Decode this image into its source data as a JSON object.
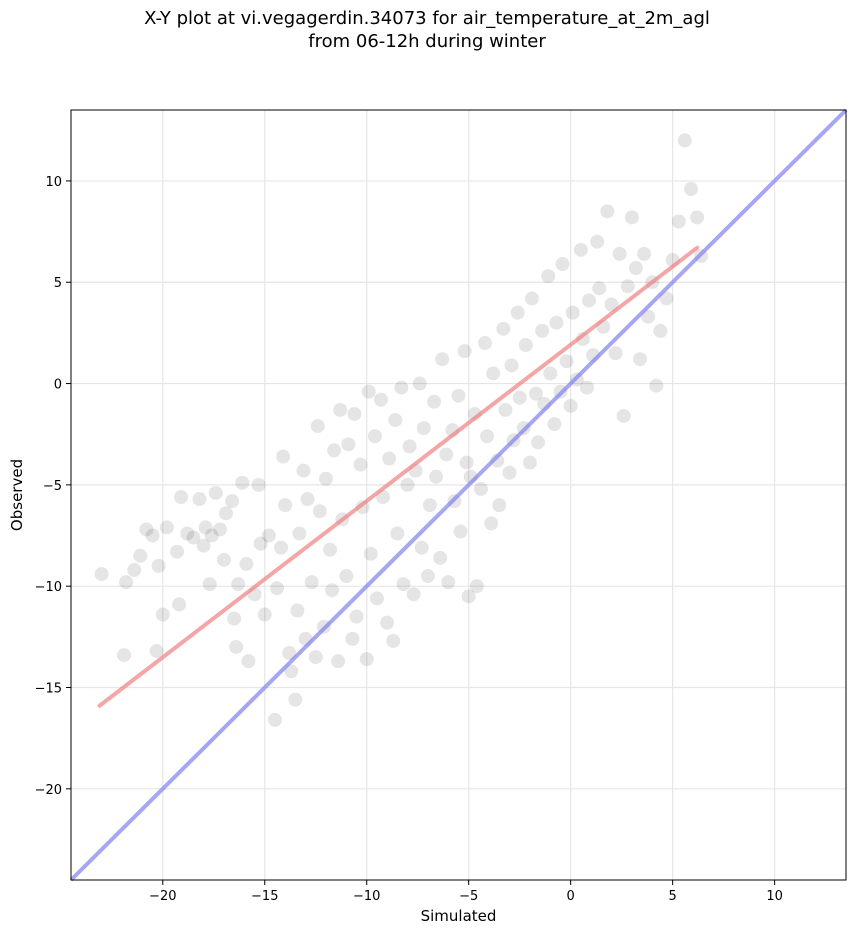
{
  "chart_data": {
    "type": "scatter",
    "title": "X-Y plot at vi.vegagerdin.34073 for air_temperature_at_2m_agl",
    "subtitle": "from 06-12h during winter",
    "xlabel": "Simulated",
    "ylabel": "Observed",
    "xlim": [
      -24.5,
      13.5
    ],
    "ylim": [
      -24.5,
      13.5
    ],
    "xticks": [
      -20,
      -15,
      -10,
      -5,
      0,
      5,
      10
    ],
    "yticks": [
      -20,
      -15,
      -10,
      -5,
      0,
      5,
      10
    ],
    "xtick_labels": [
      "−20",
      "−15",
      "−10",
      "−5",
      "0",
      "5",
      "10"
    ],
    "ytick_labels": [
      "−20",
      "−15",
      "−10",
      "−5",
      "0",
      "5",
      "10"
    ],
    "grid": true,
    "legend": "none",
    "point_color": "#000000",
    "point_alpha": 0.1,
    "points": [
      [
        -23,
        -9.4
      ],
      [
        -21.9,
        -13.4
      ],
      [
        -21.8,
        -9.8
      ],
      [
        -21.4,
        -9.2
      ],
      [
        -21.1,
        -8.5
      ],
      [
        -20.8,
        -7.2
      ],
      [
        -20.5,
        -7.5
      ],
      [
        -20.3,
        -13.2
      ],
      [
        -20.2,
        -9.0
      ],
      [
        -20.0,
        -11.4
      ],
      [
        -19.8,
        -7.1
      ],
      [
        -19.3,
        -8.3
      ],
      [
        -19.2,
        -10.9
      ],
      [
        -19.1,
        -5.6
      ],
      [
        -18.8,
        -7.4
      ],
      [
        -18.5,
        -7.6
      ],
      [
        -18.2,
        -5.7
      ],
      [
        -18.0,
        -8.0
      ],
      [
        -17.9,
        -7.1
      ],
      [
        -17.7,
        -9.9
      ],
      [
        -17.6,
        -7.5
      ],
      [
        -17.4,
        -5.4
      ],
      [
        -17.2,
        -7.2
      ],
      [
        -17.0,
        -8.7
      ],
      [
        -16.9,
        -6.4
      ],
      [
        -16.6,
        -5.8
      ],
      [
        -16.5,
        -11.6
      ],
      [
        -16.4,
        -13.0
      ],
      [
        -16.3,
        -9.9
      ],
      [
        -16.1,
        -4.9
      ],
      [
        -15.9,
        -8.9
      ],
      [
        -15.8,
        -13.7
      ],
      [
        -15.5,
        -10.4
      ],
      [
        -15.3,
        -5.0
      ],
      [
        -15.2,
        -7.9
      ],
      [
        -15.0,
        -11.4
      ],
      [
        -14.8,
        -7.5
      ],
      [
        -14.5,
        -16.6
      ],
      [
        -14.4,
        -10.1
      ],
      [
        -14.2,
        -8.1
      ],
      [
        -14.1,
        -3.6
      ],
      [
        -14.0,
        -6.0
      ],
      [
        -13.8,
        -13.3
      ],
      [
        -13.7,
        -14.2
      ],
      [
        -13.5,
        -15.6
      ],
      [
        -13.4,
        -11.2
      ],
      [
        -13.3,
        -7.4
      ],
      [
        -13.1,
        -4.3
      ],
      [
        -13.0,
        -12.6
      ],
      [
        -12.9,
        -5.7
      ],
      [
        -12.7,
        -9.8
      ],
      [
        -12.5,
        -13.5
      ],
      [
        -12.4,
        -2.1
      ],
      [
        -12.3,
        -6.3
      ],
      [
        -12.1,
        -12.0
      ],
      [
        -12.0,
        -4.7
      ],
      [
        -11.8,
        -8.2
      ],
      [
        -11.7,
        -10.2
      ],
      [
        -11.6,
        -3.3
      ],
      [
        -11.4,
        -13.7
      ],
      [
        -11.3,
        -1.3
      ],
      [
        -11.2,
        -6.7
      ],
      [
        -11.0,
        -9.5
      ],
      [
        -10.9,
        -3.0
      ],
      [
        -10.7,
        -12.6
      ],
      [
        -10.6,
        -1.5
      ],
      [
        -10.5,
        -11.5
      ],
      [
        -10.3,
        -4.0
      ],
      [
        -10.2,
        -6.1
      ],
      [
        -10.0,
        -13.6
      ],
      [
        -9.9,
        -0.4
      ],
      [
        -9.8,
        -8.4
      ],
      [
        -9.6,
        -2.6
      ],
      [
        -9.5,
        -10.6
      ],
      [
        -9.3,
        -0.8
      ],
      [
        -9.2,
        -5.6
      ],
      [
        -9.0,
        -11.8
      ],
      [
        -8.9,
        -3.7
      ],
      [
        -8.7,
        -12.7
      ],
      [
        -8.6,
        -1.8
      ],
      [
        -8.5,
        -7.4
      ],
      [
        -8.3,
        -0.2
      ],
      [
        -8.2,
        -9.9
      ],
      [
        -8.0,
        -5.0
      ],
      [
        -7.9,
        -3.1
      ],
      [
        -7.7,
        -10.4
      ],
      [
        -7.6,
        -4.3
      ],
      [
        -7.4,
        0.0
      ],
      [
        -7.3,
        -8.1
      ],
      [
        -7.2,
        -2.2
      ],
      [
        -7.0,
        -9.5
      ],
      [
        -6.9,
        -6.0
      ],
      [
        -6.7,
        -0.9
      ],
      [
        -6.6,
        -4.6
      ],
      [
        -6.4,
        -8.6
      ],
      [
        -6.3,
        1.2
      ],
      [
        -6.1,
        -3.5
      ],
      [
        -6.0,
        -9.8
      ],
      [
        -5.8,
        -2.3
      ],
      [
        -5.7,
        -5.8
      ],
      [
        -5.5,
        -0.6
      ],
      [
        -5.4,
        -7.3
      ],
      [
        -5.2,
        1.6
      ],
      [
        -5.1,
        -3.9
      ],
      [
        -5.0,
        -10.5
      ],
      [
        -4.9,
        -4.6
      ],
      [
        -4.7,
        -1.5
      ],
      [
        -4.6,
        -10.0
      ],
      [
        -4.4,
        -5.2
      ],
      [
        -4.2,
        2.0
      ],
      [
        -4.1,
        -2.6
      ],
      [
        -3.9,
        -6.9
      ],
      [
        -3.8,
        0.5
      ],
      [
        -3.6,
        -3.8
      ],
      [
        -3.5,
        -6.0
      ],
      [
        -3.3,
        2.7
      ],
      [
        -3.2,
        -1.3
      ],
      [
        -3.0,
        -4.4
      ],
      [
        -2.9,
        0.9
      ],
      [
        -2.8,
        -2.8
      ],
      [
        -2.6,
        3.5
      ],
      [
        -2.5,
        -0.7
      ],
      [
        -2.3,
        -2.2
      ],
      [
        -2.2,
        1.9
      ],
      [
        -2.0,
        -3.9
      ],
      [
        -1.9,
        4.2
      ],
      [
        -1.7,
        -0.5
      ],
      [
        -1.6,
        -2.9
      ],
      [
        -1.4,
        2.6
      ],
      [
        -1.3,
        -1.0
      ],
      [
        -1.1,
        5.3
      ],
      [
        -1.0,
        0.5
      ],
      [
        -0.8,
        -2.0
      ],
      [
        -0.7,
        3.0
      ],
      [
        -0.5,
        -0.4
      ],
      [
        -0.4,
        5.9
      ],
      [
        -0.2,
        1.1
      ],
      [
        0.0,
        -1.1
      ],
      [
        0.1,
        3.5
      ],
      [
        0.3,
        0.2
      ],
      [
        0.5,
        6.6
      ],
      [
        0.6,
        2.2
      ],
      [
        0.8,
        -0.2
      ],
      [
        0.9,
        4.1
      ],
      [
        1.1,
        1.4
      ],
      [
        1.3,
        7.0
      ],
      [
        1.4,
        4.7
      ],
      [
        1.6,
        2.8
      ],
      [
        1.8,
        8.5
      ],
      [
        2.0,
        3.9
      ],
      [
        2.2,
        1.5
      ],
      [
        2.4,
        6.4
      ],
      [
        2.6,
        -1.6
      ],
      [
        2.8,
        4.8
      ],
      [
        3.0,
        8.2
      ],
      [
        3.2,
        5.7
      ],
      [
        3.4,
        1.2
      ],
      [
        3.6,
        6.4
      ],
      [
        3.8,
        3.3
      ],
      [
        4.0,
        5.0
      ],
      [
        4.2,
        -0.1
      ],
      [
        4.4,
        2.6
      ],
      [
        4.7,
        4.2
      ],
      [
        5.0,
        6.1
      ],
      [
        5.3,
        8.0
      ],
      [
        5.6,
        12.0
      ],
      [
        5.9,
        9.6
      ],
      [
        6.2,
        8.2
      ],
      [
        6.4,
        6.3
      ]
    ],
    "trend_line": {
      "color": "#f08080",
      "x": [
        -23.1,
        6.2
      ],
      "y": [
        -15.9,
        6.7
      ]
    },
    "identity_line": {
      "color": "#8080f0",
      "x": [
        -24.5,
        13.5
      ],
      "y": [
        -24.5,
        13.5
      ]
    }
  }
}
